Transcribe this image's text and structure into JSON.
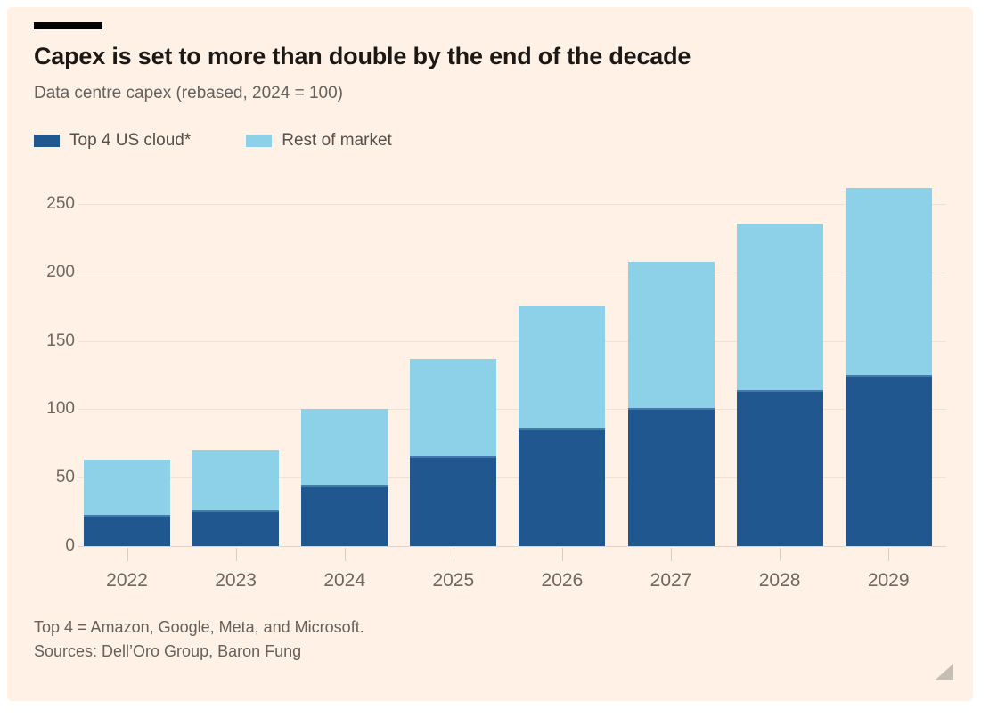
{
  "chart": {
    "title": "Capex is set to more than double by the end of the decade",
    "subtitle": "Data centre capex (rebased, 2024 = 100)",
    "footnote": "Top 4 = Amazon, Google, Meta, and Microsoft.",
    "sources": "Sources: Dell’Oro Group, Baron Fung"
  },
  "chart_data": {
    "type": "bar",
    "stacked": true,
    "title": "Capex is set to more than double by the end of the decade",
    "subtitle": "Data centre capex (rebased, 2024 = 100)",
    "categories": [
      "2022",
      "2023",
      "2024",
      "2025",
      "2026",
      "2027",
      "2028",
      "2029"
    ],
    "series": [
      {
        "name": "Top 4 US cloud*",
        "color": "#20578f",
        "values": [
          23,
          26,
          44,
          66,
          86,
          101,
          114,
          125
        ]
      },
      {
        "name": "Rest of market",
        "color": "#8dd1e8",
        "values": [
          40,
          44,
          56,
          71,
          89,
          107,
          122,
          137
        ]
      }
    ],
    "totals": [
      63,
      70,
      100,
      137,
      175,
      208,
      236,
      262
    ],
    "xlabel": "",
    "ylabel": "",
    "yticks": [
      0,
      50,
      100,
      150,
      200,
      250
    ],
    "ylim": [
      0,
      269
    ],
    "grid": "horizontal",
    "legend_position": "top-left"
  },
  "colors": {
    "page_bg": "#ffffff",
    "card_bg": "#fff1e5",
    "title_text": "#1b1816",
    "grey_text": "#66605c",
    "gridline": "#f2e1d3",
    "kicker_bar": "#000000",
    "resize_handle": "#c6beb5"
  },
  "icons": {
    "resize_handle": "resize-triangle"
  }
}
